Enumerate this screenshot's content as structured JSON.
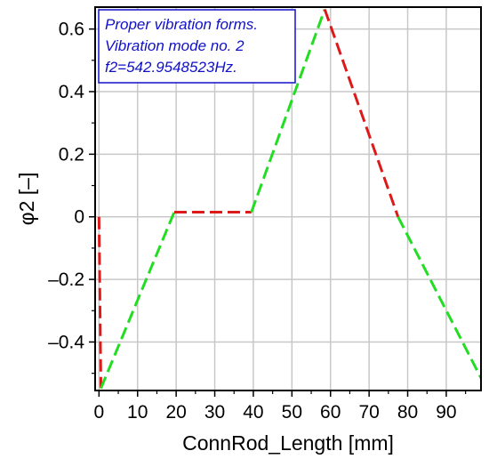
{
  "chart_data": {
    "type": "line",
    "xlabel": "ConnRod_Length [mm]",
    "ylabel": "φ2 [–]",
    "xlim": [
      -1,
      99
    ],
    "ylim": [
      -0.555,
      0.67
    ],
    "x_ticks": [
      0,
      10,
      20,
      30,
      40,
      50,
      60,
      70,
      80,
      90
    ],
    "x_tick_labels": [
      "0",
      "10",
      "20",
      "30",
      "40",
      "50",
      "60",
      "70",
      "80",
      "90"
    ],
    "y_ticks": [
      -0.4,
      -0.2,
      0,
      0.2,
      0.4,
      0.6
    ],
    "y_tick_labels": [
      "–0.4",
      "–0.2",
      "0",
      "0.2",
      "0.4",
      "0.6"
    ],
    "grid": true,
    "legend_position": "top-left",
    "annotation_lines": [
      "Proper vibration forms.",
      "Vibration mode no. 2",
      "f2=542.9548523Hz."
    ],
    "colors": {
      "positive_segment": "#22dd22",
      "negative_segment": "#dd1a1a",
      "annotation_text": "#1010c8",
      "annotation_border": "#1010c8",
      "grid": "#c8c8c8"
    },
    "segments": [
      {
        "x": [
          0,
          0.5
        ],
        "y": [
          0.0,
          -0.548
        ],
        "color": "negative_segment"
      },
      {
        "x": [
          0.5,
          19.5
        ],
        "y": [
          -0.548,
          0.015
        ],
        "color": "positive_segment"
      },
      {
        "x": [
          19.5,
          39.5
        ],
        "y": [
          0.015,
          0.015
        ],
        "color": "negative_segment"
      },
      {
        "x": [
          39.5,
          58.5
        ],
        "y": [
          0.015,
          0.663
        ],
        "color": "positive_segment"
      },
      {
        "x": [
          58.5,
          77.5
        ],
        "y": [
          0.663,
          0.0
        ],
        "color": "negative_segment"
      },
      {
        "x": [
          77.5,
          99
        ],
        "y": [
          0.0,
          -0.515
        ],
        "color": "positive_segment"
      }
    ]
  }
}
